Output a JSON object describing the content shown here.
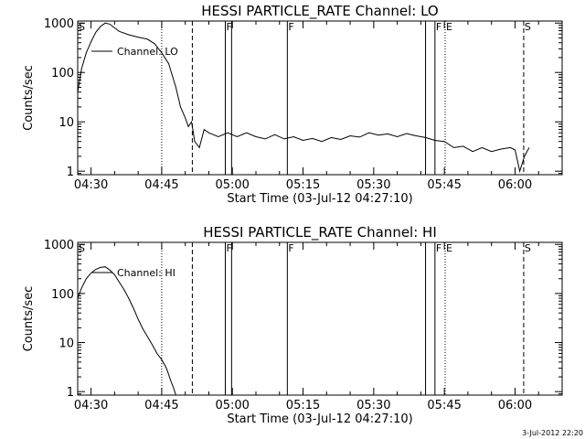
{
  "footer": {
    "stamp": "3-Jul-2012 22:20"
  },
  "chart_data": [
    {
      "type": "line",
      "title": "HESSI PARTICLE_RATE Channel: LO",
      "xlabel": "Start Time (03-Jul-12 04:27:10)",
      "ylabel": "Counts/sec",
      "yscale": "log",
      "ylim": [
        0.85,
        1100
      ],
      "xlim": [
        "04:27:10",
        "06:10:00"
      ],
      "x_ticks": [
        "04:30",
        "04:45",
        "05:00",
        "05:15",
        "05:30",
        "05:45",
        "06:00"
      ],
      "y_ticks": [
        "1",
        "10",
        "100",
        "1000"
      ],
      "grid": false,
      "legend": {
        "position": "top-left",
        "entries": [
          {
            "label": "Channel: LO"
          }
        ]
      },
      "series": [
        {
          "name": "Channel: LO",
          "x": [
            "04:27:10",
            "04:28:00",
            "04:29:00",
            "04:30:00",
            "04:31:00",
            "04:32:00",
            "04:33:00",
            "04:34:00",
            "04:35:00",
            "04:36:00",
            "04:38:00",
            "04:40:00",
            "04:42:00",
            "04:43:30",
            "04:45:00",
            "04:46:30",
            "04:48:00",
            "04:49:00",
            "04:50:00",
            "04:50:40",
            "04:51:20",
            "04:52:00",
            "04:53:00",
            "04:54:00",
            "04:55:00",
            "04:57:00",
            "04:59:00",
            "05:01:00",
            "05:03:00",
            "05:05:00",
            "05:07:00",
            "05:09:00",
            "05:11:00",
            "05:13:00",
            "05:15:00",
            "05:17:00",
            "05:19:00",
            "05:21:00",
            "05:23:00",
            "05:25:00",
            "05:27:00",
            "05:29:00",
            "05:31:00",
            "05:33:00",
            "05:35:00",
            "05:37:00",
            "05:39:00",
            "05:41:00",
            "05:43:00",
            "05:45:00",
            "05:47:00",
            "05:49:00",
            "05:51:00",
            "05:53:00",
            "05:55:00",
            "05:57:00",
            "05:59:00",
            "06:00:00",
            "06:01:00",
            "06:02:00",
            "06:03:00"
          ],
          "values": [
            40,
            120,
            250,
            420,
            650,
            850,
            1000,
            950,
            800,
            680,
            580,
            520,
            470,
            380,
            250,
            150,
            50,
            20,
            12,
            8,
            10,
            4,
            3,
            7,
            6,
            5,
            6,
            5,
            6,
            5,
            4.5,
            5.5,
            4.5,
            5,
            4.2,
            4.6,
            4,
            4.8,
            4.4,
            5.2,
            4.9,
            6,
            5.4,
            5.7,
            5,
            5.8,
            5.2,
            4.8,
            4.2,
            4,
            3,
            3.2,
            2.5,
            3,
            2.5,
            2.8,
            3,
            2.7,
            1,
            2,
            3
          ]
        }
      ],
      "annotations": {
        "dotted_lines": [
          "04:45:00",
          "05:45:10"
        ],
        "dashed_lines": [
          "04:51:30",
          "06:01:50"
        ],
        "solid_lines": [
          "04:58:30",
          "04:59:50",
          "05:11:40",
          "05:41:00",
          "05:43:00"
        ],
        "markers": [
          {
            "label": "S",
            "at": "04:27:10"
          },
          {
            "label": "F",
            "at": "04:58:30"
          },
          {
            "label": "F",
            "at": "05:11:40"
          },
          {
            "label": "F",
            "at": "05:43:00"
          },
          {
            "label": "E",
            "at": "05:45:10"
          },
          {
            "label": "S",
            "at": "06:01:50"
          }
        ]
      }
    },
    {
      "type": "line",
      "title": "HESSI PARTICLE_RATE Channel: HI",
      "xlabel": "Start Time (03-Jul-12 04:27:10)",
      "ylabel": "Counts/sec",
      "yscale": "log",
      "ylim": [
        0.85,
        1100
      ],
      "xlim": [
        "04:27:10",
        "06:10:00"
      ],
      "x_ticks": [
        "04:30",
        "04:45",
        "05:00",
        "05:15",
        "05:30",
        "05:45",
        "06:00"
      ],
      "y_ticks": [
        "1",
        "10",
        "100",
        "1000"
      ],
      "grid": false,
      "legend": {
        "position": "top-left",
        "entries": [
          {
            "label": "Channel: HI"
          }
        ]
      },
      "series": [
        {
          "name": "Channel: HI",
          "x": [
            "04:27:10",
            "04:28:00",
            "04:29:00",
            "04:30:00",
            "04:31:00",
            "04:32:00",
            "04:33:00",
            "04:34:00",
            "04:35:00",
            "04:36:00",
            "04:37:00",
            "04:38:00",
            "04:39:00",
            "04:40:00",
            "04:41:00",
            "04:42:00",
            "04:43:00",
            "04:44:00",
            "04:45:00",
            "04:46:00",
            "04:47:00",
            "04:47:30",
            "04:48:00"
          ],
          "values": [
            80,
            130,
            200,
            260,
            310,
            340,
            350,
            300,
            240,
            170,
            120,
            80,
            50,
            30,
            19,
            13,
            9,
            6,
            4.5,
            3,
            1.6,
            1.2,
            0.85
          ]
        }
      ],
      "annotations": {
        "dotted_lines": [
          "04:45:00",
          "05:45:10"
        ],
        "dashed_lines": [
          "04:51:30",
          "06:01:50"
        ],
        "solid_lines": [
          "04:58:30",
          "04:59:50",
          "05:11:40",
          "05:41:00",
          "05:43:00"
        ],
        "markers": [
          {
            "label": "S",
            "at": "04:27:10"
          },
          {
            "label": "F",
            "at": "04:58:30"
          },
          {
            "label": "F",
            "at": "05:11:40"
          },
          {
            "label": "F",
            "at": "05:43:00"
          },
          {
            "label": "E",
            "at": "05:45:10"
          },
          {
            "label": "S",
            "at": "06:01:50"
          }
        ]
      }
    }
  ]
}
